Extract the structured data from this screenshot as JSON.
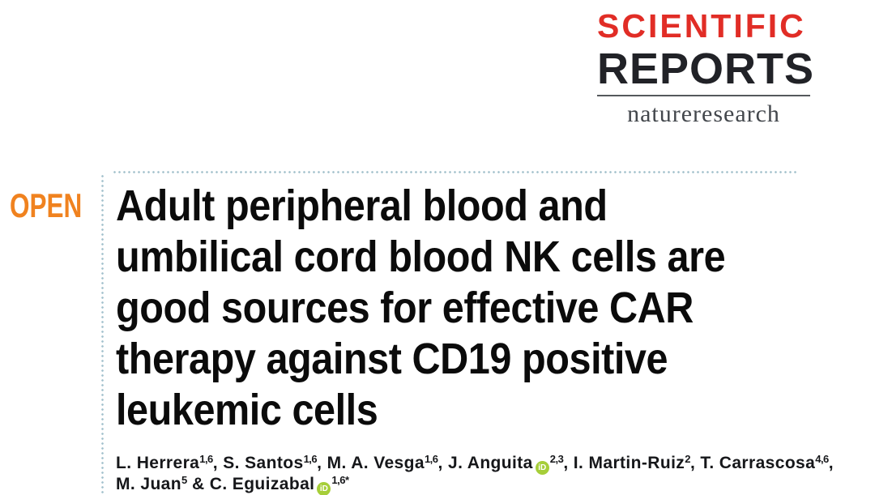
{
  "journal": {
    "name_line1": "SCIENTIFIC",
    "name_line2": "REPORTS",
    "publisher": "natureresearch",
    "brand_red": "#e12d26",
    "brand_dark": "#212227",
    "publisher_gray": "#43474c"
  },
  "open_access": {
    "label": "OPEN",
    "color": "#f0821f"
  },
  "rules": {
    "dotted_color": "#a4c2cd"
  },
  "article": {
    "title_lines": [
      "Adult peripheral blood and",
      "umbilical cord blood NK cells are",
      "good sources for effective CAR",
      "therapy against CD19 positive",
      "leukemic cells"
    ],
    "title_color": "#0b0b0b"
  },
  "authors": {
    "orcid_label": "iD",
    "orcid_color": "#a6ce39",
    "lines": [
      [
        {
          "type": "text",
          "value": "L. Herrera"
        },
        {
          "type": "sup",
          "value": "1,6"
        },
        {
          "type": "text",
          "value": ", S. Santos"
        },
        {
          "type": "sup",
          "value": "1,6"
        },
        {
          "type": "text",
          "value": ", M. A. Vesga"
        },
        {
          "type": "sup",
          "value": "1,6"
        },
        {
          "type": "text",
          "value": ", J. Anguita"
        },
        {
          "type": "orcid"
        },
        {
          "type": "sup",
          "value": "2,3"
        },
        {
          "type": "text",
          "value": ", I. Martin-Ruiz"
        },
        {
          "type": "sup",
          "value": "2"
        },
        {
          "type": "text",
          "value": ", T. Carrascosa"
        },
        {
          "type": "sup",
          "value": "4,6"
        },
        {
          "type": "text",
          "value": ","
        }
      ],
      [
        {
          "type": "text",
          "value": "M. Juan"
        },
        {
          "type": "sup",
          "value": "5"
        },
        {
          "type": "text",
          "value": " & C. Eguizabal"
        },
        {
          "type": "orcid"
        },
        {
          "type": "sup",
          "value": "1,6*"
        }
      ]
    ]
  }
}
